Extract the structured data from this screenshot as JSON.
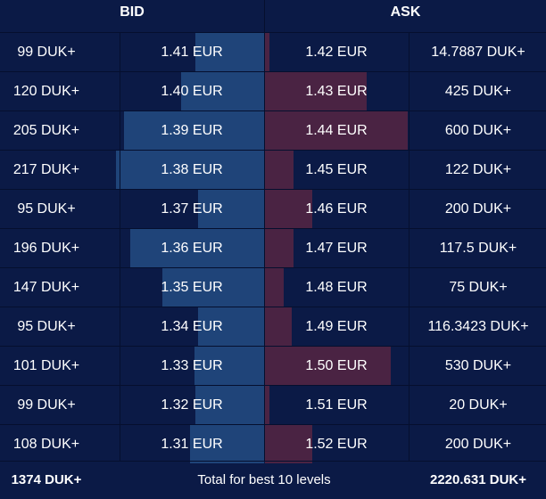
{
  "header": {
    "bid_label": "BID",
    "ask_label": "ASK"
  },
  "colors": {
    "background": "#0b1a46",
    "bid_bar": "#1f4479",
    "ask_bar": "#4a2343",
    "divider": "#050f2e",
    "text": "#ffffff"
  },
  "rows": [
    {
      "bid_qty": "99 DUK+",
      "bid_price": "1.41 EUR",
      "ask_price": "1.42 EUR",
      "ask_qty": "14.7887 DUK+",
      "bid_depth": 0.48,
      "ask_depth": 0.03
    },
    {
      "bid_qty": "120 DUK+",
      "bid_price": "1.40 EUR",
      "ask_price": "1.43 EUR",
      "ask_qty": "425 DUK+",
      "bid_depth": 0.58,
      "ask_depth": 0.71
    },
    {
      "bid_qty": "205 DUK+",
      "bid_price": "1.39 EUR",
      "ask_price": "1.44 EUR",
      "ask_qty": "600 DUK+",
      "bid_depth": 0.98,
      "ask_depth": 1.0
    },
    {
      "bid_qty": "217 DUK+",
      "bid_price": "1.38 EUR",
      "ask_price": "1.45 EUR",
      "ask_qty": "122 DUK+",
      "bid_depth": 1.04,
      "ask_depth": 0.2
    },
    {
      "bid_qty": "95 DUK+",
      "bid_price": "1.37 EUR",
      "ask_price": "1.46 EUR",
      "ask_qty": "200 DUK+",
      "bid_depth": 0.46,
      "ask_depth": 0.33
    },
    {
      "bid_qty": "196 DUK+",
      "bid_price": "1.36 EUR",
      "ask_price": "1.47 EUR",
      "ask_qty": "117.5 DUK+",
      "bid_depth": 0.94,
      "ask_depth": 0.2
    },
    {
      "bid_qty": "147 DUK+",
      "bid_price": "1.35 EUR",
      "ask_price": "1.48 EUR",
      "ask_qty": "75 DUK+",
      "bid_depth": 0.71,
      "ask_depth": 0.13
    },
    {
      "bid_qty": "95 DUK+",
      "bid_price": "1.34 EUR",
      "ask_price": "1.49 EUR",
      "ask_qty": "116.3423 DUK+",
      "bid_depth": 0.46,
      "ask_depth": 0.19
    },
    {
      "bid_qty": "101 DUK+",
      "bid_price": "1.33 EUR",
      "ask_price": "1.50 EUR",
      "ask_qty": "530 DUK+",
      "bid_depth": 0.49,
      "ask_depth": 0.88
    },
    {
      "bid_qty": "99 DUK+",
      "bid_price": "1.32 EUR",
      "ask_price": "1.51 EUR",
      "ask_qty": "20 DUK+",
      "bid_depth": 0.48,
      "ask_depth": 0.03
    },
    {
      "bid_qty": "108 DUK+",
      "bid_price": "1.31 EUR",
      "ask_price": "1.52 EUR",
      "ask_qty": "200 DUK+",
      "bid_depth": 0.52,
      "ask_depth": 0.33
    }
  ],
  "footer": {
    "bid_total": "1374 DUK+",
    "label": "Total for best 10 levels",
    "ask_total": "2220.631 DUK+"
  }
}
